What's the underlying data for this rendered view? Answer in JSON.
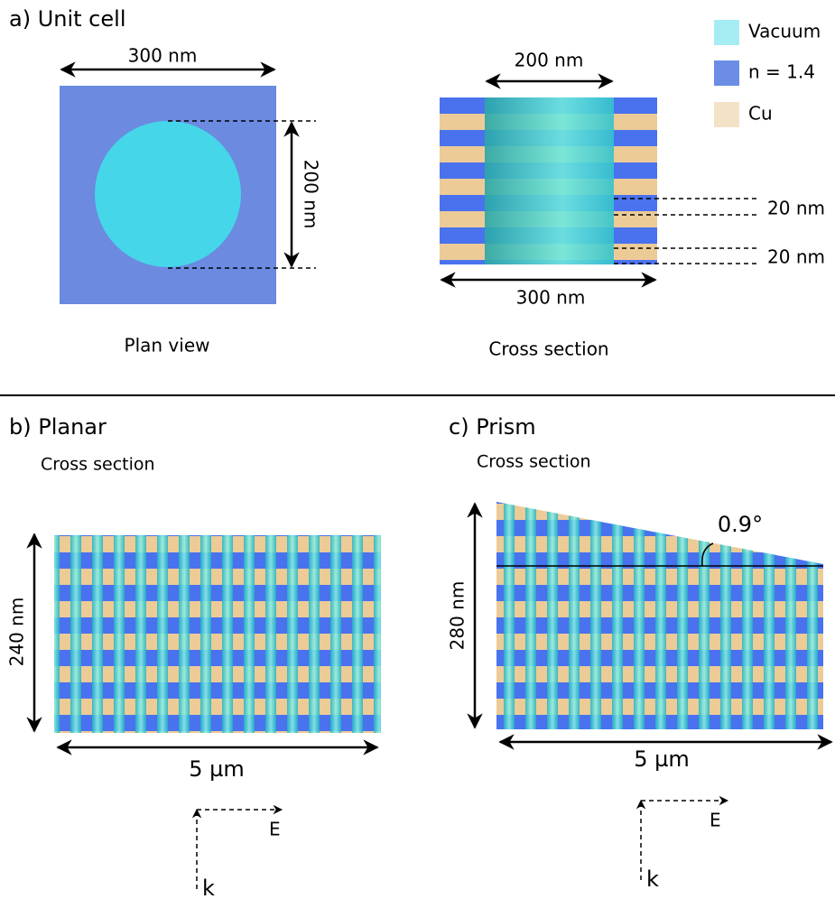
{
  "panel_a": {
    "title": "a) Unit cell",
    "plan_width": "300 nm",
    "plan_height": "200 nm",
    "plan_caption": "Plan view",
    "cross_top": "200 nm",
    "cross_bottom": "300 nm",
    "layer_1": "20 nm",
    "layer_2": "20 nm",
    "cross_caption": "Cross section"
  },
  "legend": [
    "Vacuum",
    "n = 1.4",
    "Cu"
  ],
  "panel_b": {
    "title": "b) Planar",
    "subtitle": "Cross section",
    "height": "240 nm",
    "width": "5 µm",
    "e": "E",
    "k": "k"
  },
  "panel_c": {
    "title": "c) Prism",
    "subtitle": "Cross section",
    "angle": "0.9°",
    "height": "280 nm",
    "width": "5 µm",
    "e": "E",
    "k": "k"
  }
}
